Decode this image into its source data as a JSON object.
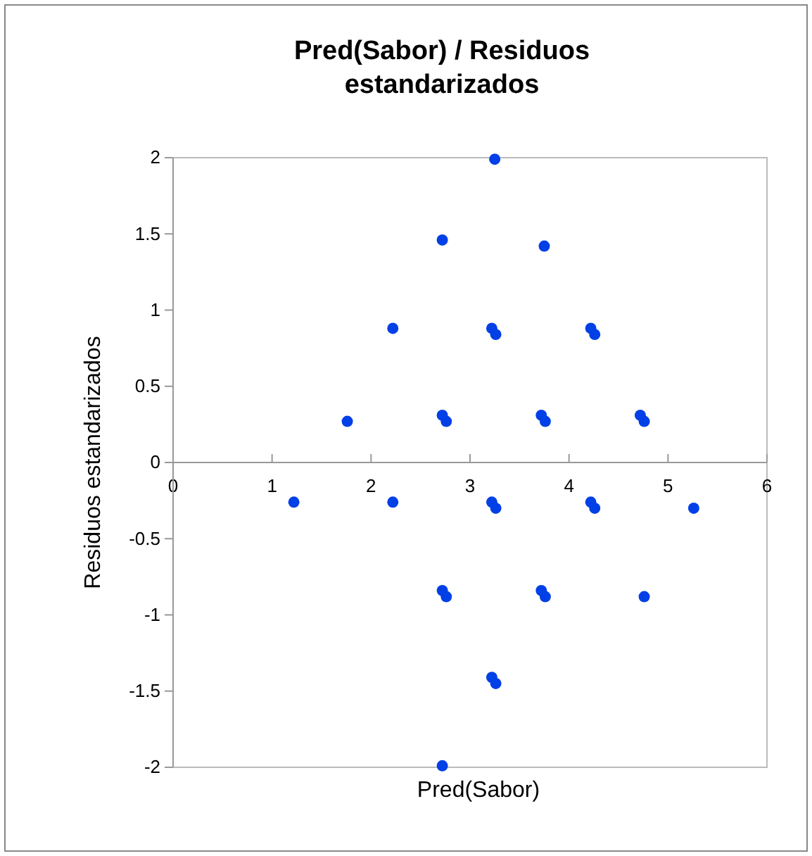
{
  "chart_data": {
    "type": "scatter",
    "title": "Pred(Sabor) / Residuos estandarizados",
    "xlabel": "Pred(Sabor)",
    "ylabel": "Residuos estandarizados",
    "xlim": [
      0,
      6
    ],
    "xticks": [
      0,
      1,
      2,
      3,
      4,
      5,
      6
    ],
    "ylim": [
      -2,
      2
    ],
    "yticks": [
      -2,
      -1.5,
      -1,
      -0.5,
      0,
      0.5,
      1,
      1.5,
      2
    ],
    "grid": false,
    "marker": "circle",
    "series": [
      {
        "color": "#0040e6",
        "x": [
          3.25,
          2.72,
          3.75,
          2.22,
          3.22,
          3.26,
          4.22,
          4.26,
          1.76,
          2.72,
          2.76,
          3.72,
          3.76,
          4.72,
          4.76,
          1.22,
          2.22,
          3.22,
          3.26,
          4.22,
          4.26,
          5.26,
          2.72,
          2.76,
          3.72,
          3.76,
          4.76,
          3.22,
          3.26,
          2.72
        ],
        "values": [
          1.99,
          1.46,
          1.42,
          0.88,
          0.88,
          0.84,
          0.88,
          0.84,
          0.27,
          0.31,
          0.27,
          0.31,
          0.27,
          0.31,
          0.27,
          -0.26,
          -0.26,
          -0.26,
          -0.3,
          -0.26,
          -0.3,
          -0.3,
          -0.84,
          -0.88,
          -0.84,
          -0.88,
          -0.88,
          -1.41,
          -1.45,
          -1.99
        ]
      }
    ]
  }
}
